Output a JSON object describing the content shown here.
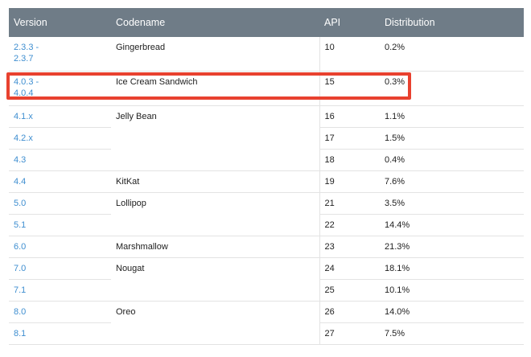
{
  "table": {
    "headers": {
      "version": "Version",
      "codename": "Codename",
      "api": "API",
      "distribution": "Distribution"
    },
    "rows": [
      {
        "version": "2.3.3 - 2.3.7",
        "codename": "Gingerbread",
        "api": "10",
        "distribution": "0.2%"
      },
      {
        "version": "4.0.3 - 4.0.4",
        "codename": "Ice Cream Sandwich",
        "api": "15",
        "distribution": "0.3%"
      },
      {
        "version": "4.1.x",
        "codename": "Jelly Bean",
        "api": "16",
        "distribution": "1.1%"
      },
      {
        "version": "4.2.x",
        "codename": "",
        "api": "17",
        "distribution": "1.5%"
      },
      {
        "version": "4.3",
        "codename": "",
        "api": "18",
        "distribution": "0.4%"
      },
      {
        "version": "4.4",
        "codename": "KitKat",
        "api": "19",
        "distribution": "7.6%"
      },
      {
        "version": "5.0",
        "codename": "Lollipop",
        "api": "21",
        "distribution": "3.5%"
      },
      {
        "version": "5.1",
        "codename": "",
        "api": "22",
        "distribution": "14.4%"
      },
      {
        "version": "6.0",
        "codename": "Marshmallow",
        "api": "23",
        "distribution": "21.3%"
      },
      {
        "version": "7.0",
        "codename": "Nougat",
        "api": "24",
        "distribution": "18.1%"
      },
      {
        "version": "7.1",
        "codename": "",
        "api": "25",
        "distribution": "10.1%"
      },
      {
        "version": "8.0",
        "codename": "Oreo",
        "api": "26",
        "distribution": "14.0%"
      },
      {
        "version": "8.1",
        "codename": "",
        "api": "27",
        "distribution": "7.5%"
      }
    ]
  },
  "highlight": {
    "row": "4.0.3 - 4.0.4",
    "color": "#e8412f"
  },
  "colors": {
    "header_bg": "#6f7c87",
    "link": "#3e8ed0",
    "border": "#e3e3e3"
  }
}
